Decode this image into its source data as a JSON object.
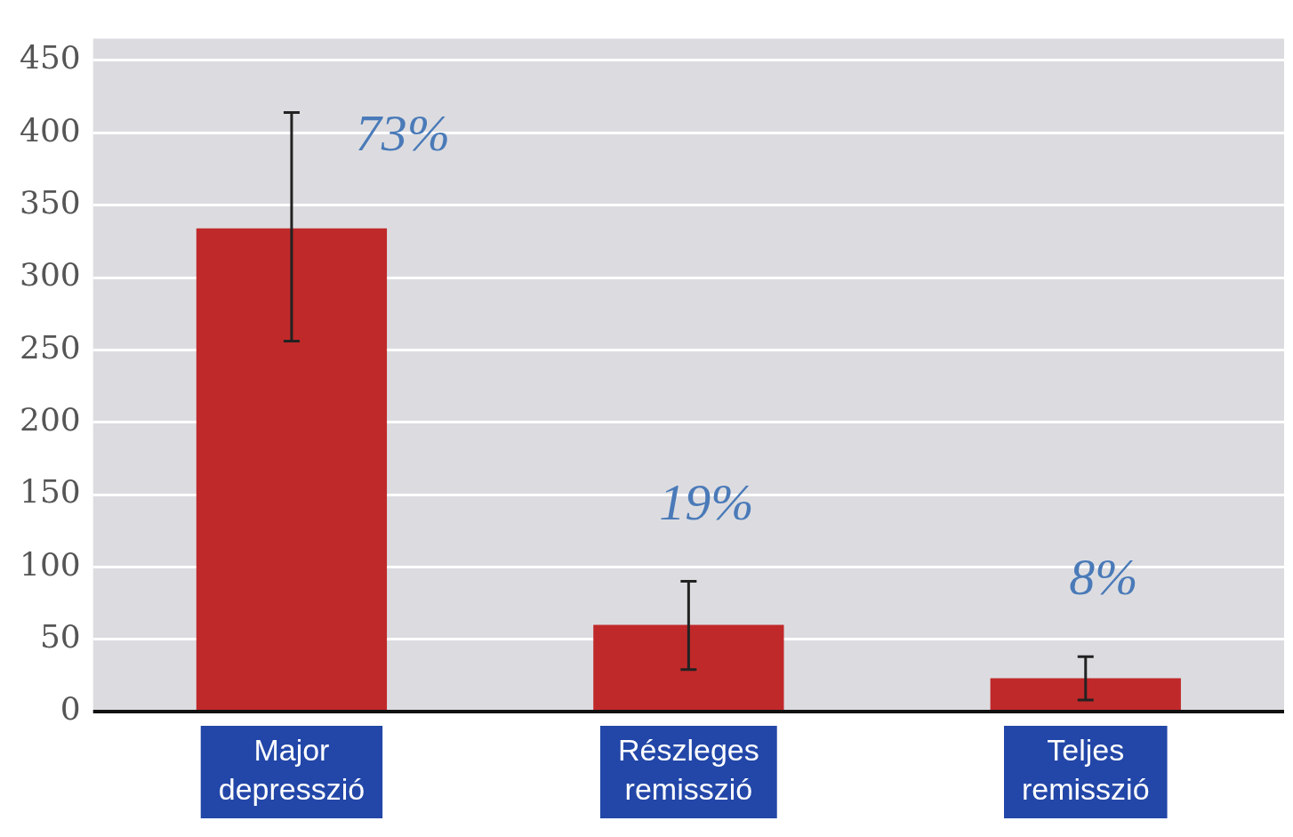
{
  "chart_data": {
    "type": "bar",
    "categories": [
      "Major depresszió",
      "Részleges remisszió",
      "Teljes remisszió"
    ],
    "values": [
      334,
      60,
      23
    ],
    "errors": [
      [
        256,
        414
      ],
      [
        29,
        90
      ],
      [
        8,
        38
      ]
    ],
    "annotations": [
      "73%",
      "19%",
      "8%"
    ],
    "color": "#c0292a",
    "ylim": [
      0,
      465
    ],
    "yticks": [
      0,
      50,
      100,
      150,
      200,
      250,
      300,
      350,
      400,
      450
    ],
    "grid": "y",
    "legend": false
  }
}
